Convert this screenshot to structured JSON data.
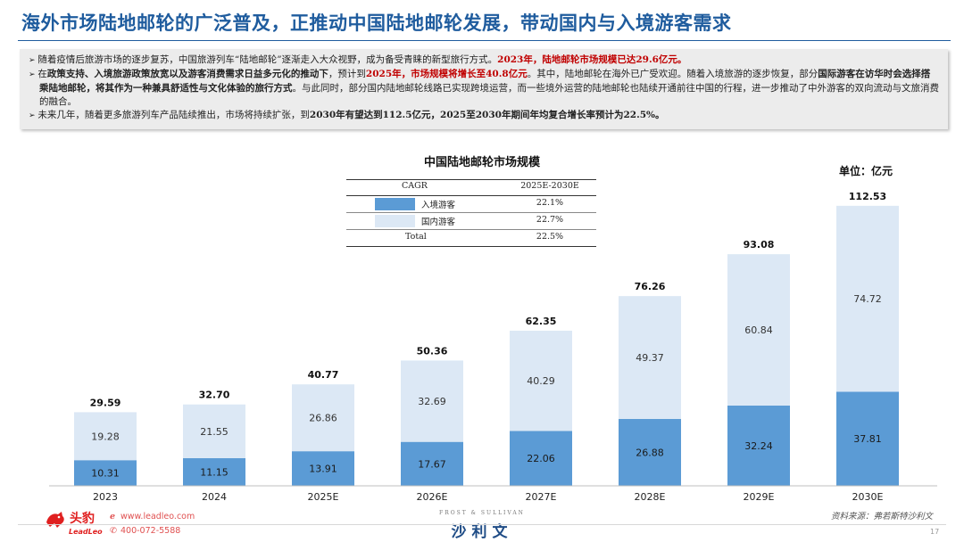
{
  "header": {
    "title": "海外市场陆地邮轮的广泛普及，正推动中国陆地邮轮发展，带动国内与入境游客需求"
  },
  "summary": {
    "b1_a": "随着疫情后旅游市场的逐步复苏，中国旅游列车“陆地邮轮”逐渐走入大众视野，成为备受青睐的新型旅行方式。",
    "b1_b": "2023年，陆地邮轮市场规模已达29.6亿元。",
    "b2_a": "在",
    "b2_b": "政策支持、入境旅游政策放宽以及游客消费需求日益多元化的推动下",
    "b2_c": "，预计到",
    "b2_d": "2025年，市场规模将增长至40.8亿元",
    "b2_e": "。其中，陆地邮轮在海外已广受欢迎。随着入境旅游的逐步恢复，部分",
    "b2_f": "国际游客在访华时会选择搭乘陆地邮轮，将其作为一种兼具舒适性与文化体验的旅行方式",
    "b2_g": "。与此同时，部分国内陆地邮轮线路已实现跨境运营，而一些境外运营的陆地邮轮也陆续开通前往中国的行程，进一步推动了中外游客的双向流动与文旅消费的融合。",
    "b3_a": "未来几年，随着更多旅游列车产品陆续推出，市场将持续扩张，到",
    "b3_b": "2030年有望达到112.5亿元，2025至2030年期间年均复合增长率预计为22.5%。"
  },
  "chart_data": {
    "type": "bar",
    "stacked": true,
    "title": "中国陆地邮轮市场规模",
    "unit": "单位：亿元",
    "categories": [
      "2023",
      "2024",
      "2025E",
      "2026E",
      "2027E",
      "2028E",
      "2029E",
      "2030E"
    ],
    "series": [
      {
        "name": "入境游客",
        "color": "#5b9bd5",
        "values": [
          10.31,
          11.15,
          13.91,
          17.67,
          22.06,
          26.88,
          32.24,
          37.81
        ]
      },
      {
        "name": "国内游客",
        "color": "#dce8f5",
        "values": [
          19.28,
          21.55,
          26.86,
          32.69,
          40.29,
          49.37,
          60.84,
          74.72
        ]
      }
    ],
    "totals": [
      "29.59",
      "32.70",
      "40.77",
      "50.36",
      "62.35",
      "76.26",
      "93.08",
      "112.53"
    ],
    "ylim": [
      0,
      120
    ],
    "cagr_table": {
      "header": [
        "CAGR",
        "2025E-2030E"
      ],
      "rows": [
        {
          "label": "入境游客",
          "value": "22.1%"
        },
        {
          "label": "国内游客",
          "value": "22.7%"
        },
        {
          "label": "Total",
          "value": "22.5%"
        }
      ]
    }
  },
  "footer": {
    "brand_cn": "头豹",
    "brand_en": "LeadLeo",
    "website": "www.leadleo.com",
    "phone": "400-072-5588",
    "partner_en": "FROST & SULLIVAN",
    "partner_cn": "沙利文",
    "source": "资料来源：弗若斯特沙利文",
    "page": "17",
    "brand_color": "#e02020"
  }
}
